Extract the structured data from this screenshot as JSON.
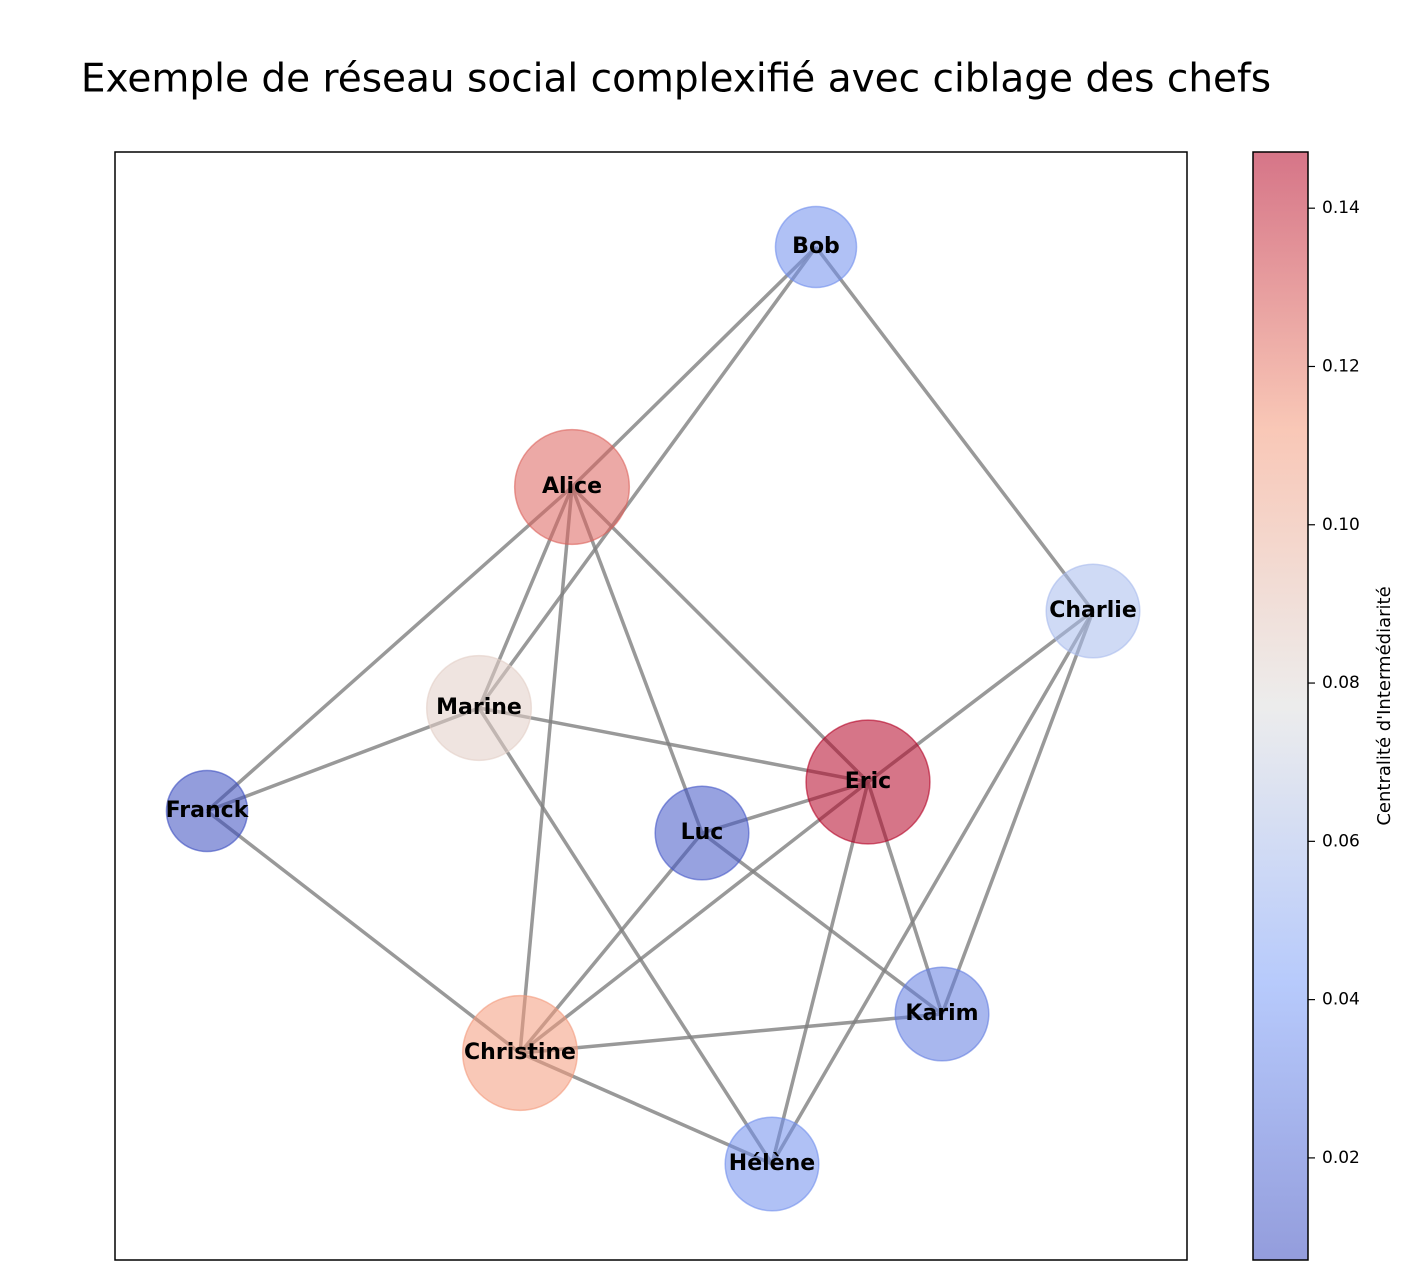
{
  "title": "Exemple de réseau social complexifié avec ciblage des chefs",
  "nodes": [
    {
      "label": "Alice",
      "centrality": 0.125
    },
    {
      "label": "Bob",
      "centrality": 0.035
    },
    {
      "label": "Charlie",
      "centrality": 0.058
    },
    {
      "label": "Christine",
      "centrality": 0.112
    },
    {
      "label": "Eric",
      "centrality": 0.1471
    },
    {
      "label": "Franck",
      "centrality": 0.0071
    },
    {
      "label": "Hélène",
      "centrality": 0.035
    },
    {
      "label": "Karim",
      "centrality": 0.027
    },
    {
      "label": "Luc",
      "centrality": 0.011
    },
    {
      "label": "Marine",
      "centrality": 0.085
    }
  ],
  "edges": [
    [
      1,
      0
    ],
    [
      1,
      9
    ],
    [
      1,
      2
    ],
    [
      0,
      5
    ],
    [
      0,
      9
    ],
    [
      0,
      3
    ],
    [
      0,
      8
    ],
    [
      0,
      4
    ],
    [
      2,
      4
    ],
    [
      2,
      6
    ],
    [
      2,
      7
    ],
    [
      9,
      5
    ],
    [
      9,
      4
    ],
    [
      9,
      6
    ],
    [
      5,
      3
    ],
    [
      8,
      4
    ],
    [
      8,
      3
    ],
    [
      8,
      7
    ],
    [
      4,
      3
    ],
    [
      4,
      6
    ],
    [
      4,
      7
    ],
    [
      3,
      7
    ],
    [
      3,
      6
    ]
  ],
  "colorbar": {
    "label": "Centralité d'Intermédiarité",
    "colormap": "coolwarm",
    "alpha": 0.55,
    "lim": [
      0.0071,
      0.1471
    ],
    "ticks": [
      0.02,
      0.04,
      0.06,
      0.08,
      {
        "value": 0.1,
        "label": "0.10"
      },
      0.12,
      0.14
    ]
  }
}
